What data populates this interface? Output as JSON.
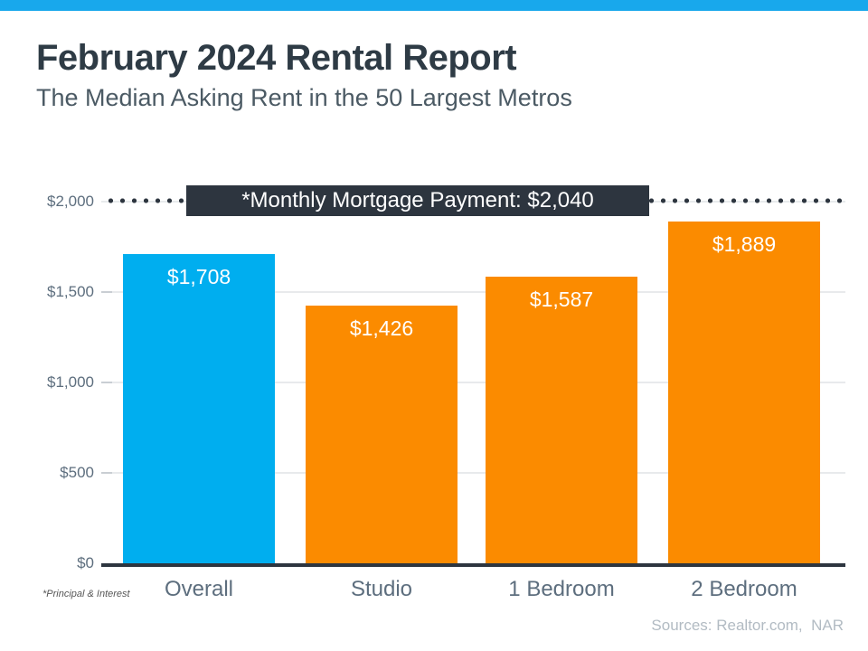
{
  "header": {
    "title": "February 2024 Rental Report",
    "subtitle": "The Median Asking Rent in the 50 Largest Metros"
  },
  "chart_data": {
    "type": "bar",
    "title": "February 2024 Rental Report",
    "subtitle": "The Median Asking Rent in the 50 Largest Metros",
    "categories": [
      "Overall",
      "Studio",
      "1 Bedroom",
      "2 Bedroom"
    ],
    "values": [
      1708,
      1426,
      1587,
      1889
    ],
    "value_labels": [
      "$1,708",
      "$1,426",
      "$1,587",
      "$1,889"
    ],
    "bar_colors": [
      "#00aeef",
      "#fb8b00",
      "#fb8b00",
      "#fb8b00"
    ],
    "xlabel": "",
    "ylabel": "",
    "ylim": [
      0,
      2100
    ],
    "grid": "horizontal-light",
    "legend": "none",
    "yticks": [
      {
        "value": 0,
        "label": "$0"
      },
      {
        "value": 500,
        "label": "$500"
      },
      {
        "value": 1000,
        "label": "$1,000"
      },
      {
        "value": 1500,
        "label": "$1,500"
      },
      {
        "value": 2000,
        "label": "$2,000"
      }
    ],
    "reference_line": {
      "value": 2040,
      "label": "*Monthly Mortgage Payment: $2,040",
      "style": "dotted",
      "color": "#2d353f"
    }
  },
  "footer": {
    "footnote": "*Principal & Interest",
    "sources": "Sources: Realtor.com,  NAR"
  },
  "colors": {
    "top_accent": "#18a8ec",
    "bar_blue": "#00aeef",
    "bar_orange": "#fb8b00",
    "dark_slate": "#2d353f",
    "title_text": "#2e3b45",
    "subtitle_text": "#4b5a64",
    "axis_text": "#5d6e7e",
    "gridline": "#e8eaec",
    "sources_text": "#b2bbc3"
  }
}
